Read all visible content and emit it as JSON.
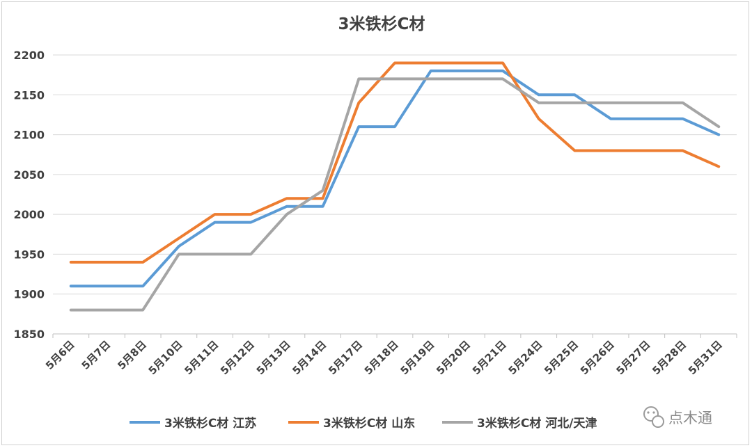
{
  "chart_data": {
    "type": "line",
    "title": "3米铁杉C材",
    "xlabel": "",
    "ylabel": "",
    "categories": [
      "5月6日",
      "5月7日",
      "5月8日",
      "5月10日",
      "5月11日",
      "5月12日",
      "5月13日",
      "5月14日",
      "5月17日",
      "5月18日",
      "5月19日",
      "5月20日",
      "5月21日",
      "5月24日",
      "5月25日",
      "5月26日",
      "5月27日",
      "5月28日",
      "5月31日"
    ],
    "ylim": [
      1850,
      2200
    ],
    "yticks": [
      1850,
      1900,
      1950,
      2000,
      2050,
      2100,
      2150,
      2200
    ],
    "grid": "horizontal",
    "legend_position": "bottom",
    "series": [
      {
        "name": "3米铁杉C材 江苏",
        "color": "#5b9bd5",
        "values": [
          1910,
          1910,
          1910,
          1960,
          1990,
          1990,
          2010,
          2010,
          2110,
          2110,
          2180,
          2180,
          2180,
          2150,
          2150,
          2120,
          2120,
          2120,
          2100
        ]
      },
      {
        "name": "3米铁杉C材 山东",
        "color": "#ed7d31",
        "values": [
          1940,
          1940,
          1940,
          1970,
          2000,
          2000,
          2020,
          2020,
          2140,
          2190,
          2190,
          2190,
          2190,
          2120,
          2080,
          2080,
          2080,
          2080,
          2060
        ]
      },
      {
        "name": "3米铁杉C材 河北/天津",
        "color": "#a5a5a5",
        "values": [
          1880,
          1880,
          1880,
          1950,
          1950,
          1950,
          2000,
          2030,
          2170,
          2170,
          2170,
          2170,
          2170,
          2140,
          2140,
          2140,
          2140,
          2140,
          2110
        ]
      }
    ]
  },
  "watermark": {
    "text": "点木通",
    "icon": "wechat-icon"
  }
}
